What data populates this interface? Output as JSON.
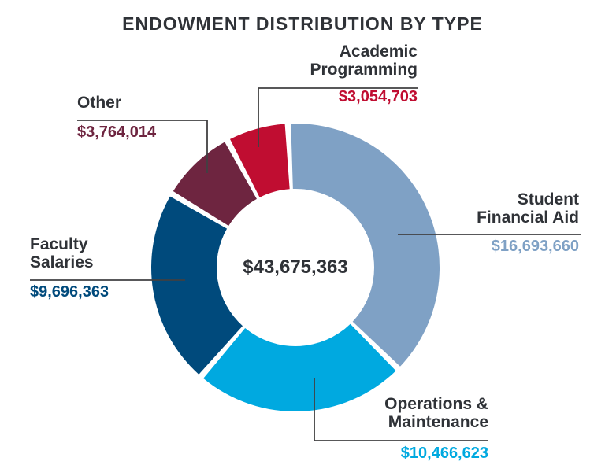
{
  "title": "ENDOWMENT DISTRIBUTION BY TYPE",
  "center_total": "$43,675,363",
  "colors": {
    "title_text": "#2F3237",
    "label_text": "#2F3237",
    "leader_line": "#414042",
    "background": "#FFFFFF",
    "student_financial_aid": "#7FA1C5",
    "operations_maintenance": "#00A9E0",
    "faculty_salaries": "#004A7C",
    "other": "#6E2540",
    "academic_programming": "#C00D31"
  },
  "chart_data": {
    "type": "pie",
    "subtype": "donut",
    "title": "ENDOWMENT DISTRIBUTION BY TYPE",
    "center_label": "$43,675,363",
    "total": 43675363,
    "start_angle_deg": -3,
    "direction": "clockwise",
    "legend": "none",
    "segments": [
      {
        "id": "student_financial_aid",
        "label": "Student Financial Aid",
        "value": 16693660,
        "value_label": "$16,693,660",
        "color": "#7FA1C5"
      },
      {
        "id": "operations_maintenance",
        "label": "Operations & Maintenance",
        "value": 10466623,
        "value_label": "$10,466,623",
        "color": "#00A9E0"
      },
      {
        "id": "faculty_salaries",
        "label": "Faculty Salaries",
        "value": 9696363,
        "value_label": "$9,696,363",
        "color": "#004A7C"
      },
      {
        "id": "other",
        "label": "Other",
        "value": 3764014,
        "value_label": "$3,764,014",
        "color": "#6E2540"
      },
      {
        "id": "academic_programming",
        "label": "Academic Programming",
        "value": 3054703,
        "value_label": "$3,054,703",
        "color": "#C00D31"
      }
    ]
  },
  "callouts": {
    "academic_programming": {
      "line1": "Academic",
      "line2": "Programming",
      "value": "$3,054,703"
    },
    "other": {
      "line1": "Other",
      "value": "$3,764,014"
    },
    "student_financial_aid": {
      "line1": "Student",
      "line2": "Financial Aid",
      "value": "$16,693,660"
    },
    "faculty_salaries": {
      "line1": "Faculty",
      "line2": "Salaries",
      "value": "$9,696,363"
    },
    "operations_maintenance": {
      "line1": "Operations &",
      "line2": "Maintenance",
      "value": "$10,466,623"
    }
  }
}
